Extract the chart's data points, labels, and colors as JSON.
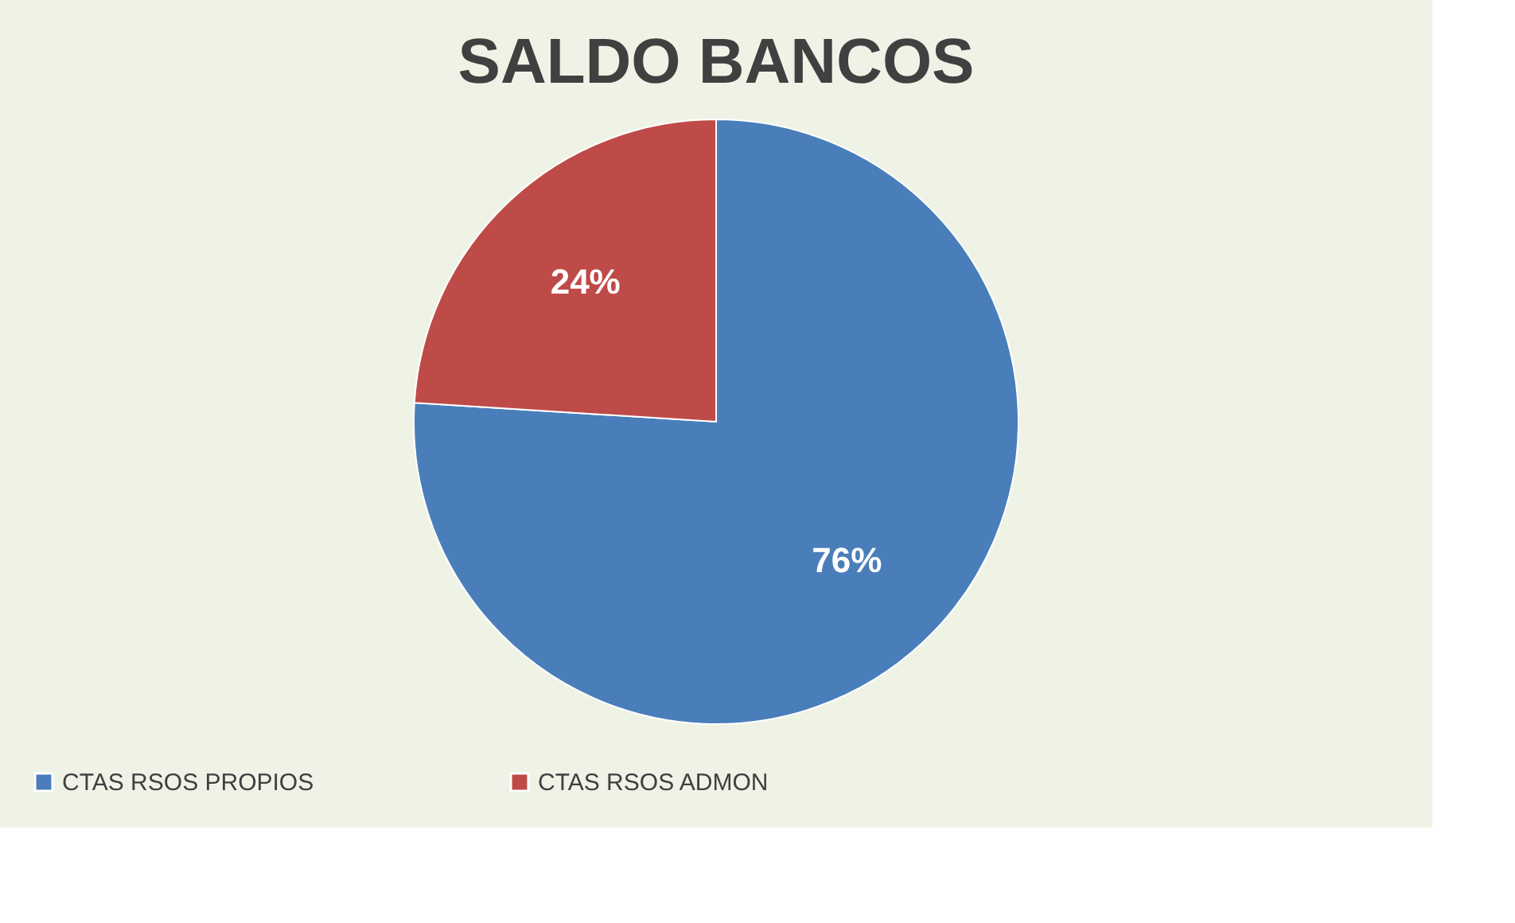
{
  "chart_data": {
    "type": "pie",
    "title": "SALDO BANCOS",
    "categories": [
      "CTAS RSOS PROPIOS",
      "CTAS RSOS ADMON"
    ],
    "values": [
      76,
      24
    ],
    "colors": [
      "#4a7ebb",
      "#be4b48"
    ],
    "value_labels": [
      "76%",
      "24%"
    ],
    "legend": "bottom"
  }
}
